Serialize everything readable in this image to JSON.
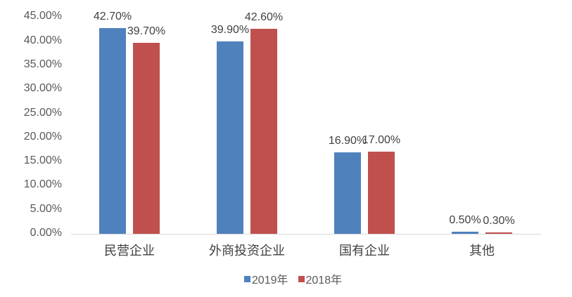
{
  "chart_data": {
    "type": "bar",
    "title": "",
    "xlabel": "",
    "ylabel": "",
    "categories": [
      "民营企业",
      "外商投资企业",
      "国有企业",
      "其他"
    ],
    "series": [
      {
        "name": "2019年",
        "color": "#4f81bd",
        "values": [
          42.7,
          39.9,
          16.9,
          0.5
        ],
        "labels": [
          "42.70%",
          "39.90%",
          "16.90%",
          "0.50%"
        ]
      },
      {
        "name": "2018年",
        "color": "#c0504d",
        "values": [
          39.7,
          42.6,
          17.0,
          0.3
        ],
        "labels": [
          "39.70%",
          "42.60%",
          "17.00%",
          "0.30%"
        ]
      }
    ],
    "ylim": [
      0,
      45
    ],
    "yticks": [
      "0.00%",
      "5.00%",
      "10.00%",
      "15.00%",
      "20.00%",
      "25.00%",
      "30.00%",
      "35.00%",
      "40.00%",
      "45.00%"
    ],
    "grid": false,
    "legend_position": "bottom"
  }
}
